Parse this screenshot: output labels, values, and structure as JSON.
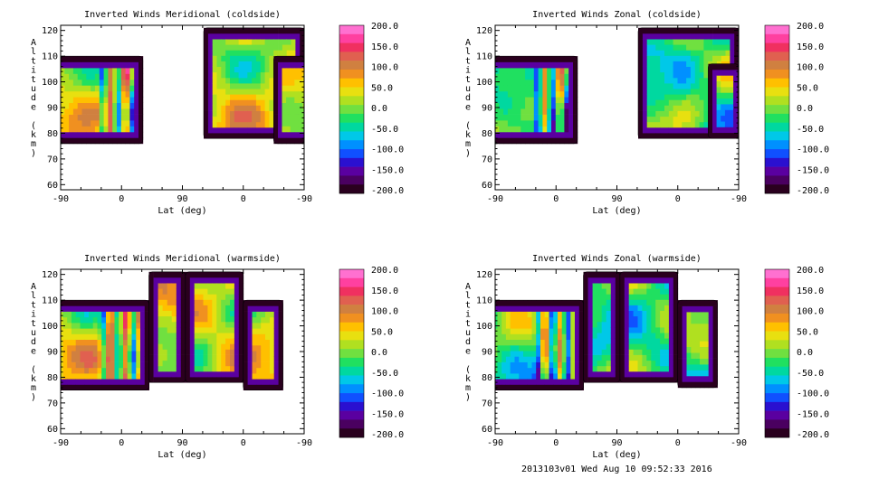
{
  "footer": "2013103v01 Wed Aug 10 09:52:33 2016",
  "colorbar": {
    "ticks": [
      "200.0",
      "150.0",
      "100.0",
      "50.0",
      "0.0",
      "-50.0",
      "-100.0",
      "-150.0",
      "-200.0"
    ],
    "values": [
      200,
      150,
      100,
      50,
      0,
      -50,
      -100,
      -150,
      -200
    ],
    "colors": [
      "#2a001e",
      "#4a0060",
      "#5a00a0",
      "#2a10d0",
      "#1050ff",
      "#0090ff",
      "#00c8e8",
      "#00d8a0",
      "#20e060",
      "#70e040",
      "#b0e020",
      "#e8e010",
      "#ffc000",
      "#f09020",
      "#d08040",
      "#e06050",
      "#f03060",
      "#ff40a0",
      "#ff70d0"
    ]
  },
  "chart_data": [
    {
      "type": "heatmap",
      "title": "Inverted Winds Meridional (coldside)",
      "xlabel": "Lat (deg)",
      "ylabel": "Altitude (km)",
      "xticks": [
        "-90",
        "0",
        "90",
        "0",
        "-90"
      ],
      "yticks": [
        "60",
        "70",
        "80",
        "90",
        "100",
        "110",
        "120"
      ],
      "ylim": [
        58,
        122
      ],
      "value_range": [
        -200,
        200
      ],
      "notes": "contour fill of meridional wind; empty gap near 90 deg"
    },
    {
      "type": "heatmap",
      "title": "Inverted Winds Zonal (coldside)",
      "xlabel": "Lat (deg)",
      "ylabel": "Altitude (km)",
      "xticks": [
        "-90",
        "0",
        "90",
        "0",
        "-90"
      ],
      "yticks": [
        "60",
        "70",
        "80",
        "90",
        "100",
        "110",
        "120"
      ],
      "ylim": [
        58,
        122
      ],
      "value_range": [
        -200,
        200
      ],
      "notes": "contour fill of zonal wind; empty gap near 90 deg"
    },
    {
      "type": "heatmap",
      "title": "Inverted Winds Meridional (warmside)",
      "xlabel": "Lat (deg)",
      "ylabel": "Altitude (km)",
      "xticks": [
        "-90",
        "0",
        "90",
        "0",
        "-90"
      ],
      "yticks": [
        "60",
        "70",
        "80",
        "90",
        "100",
        "110",
        "120"
      ],
      "ylim": [
        58,
        122
      ],
      "value_range": [
        -200,
        200
      ],
      "notes": "contour fill of meridional wind"
    },
    {
      "type": "heatmap",
      "title": "Inverted Winds Zonal (warmside)",
      "xlabel": "Lat (deg)",
      "ylabel": "Altitude (km)",
      "xticks": [
        "-90",
        "0",
        "90",
        "0",
        "-90"
      ],
      "yticks": [
        "60",
        "70",
        "80",
        "90",
        "100",
        "110",
        "120"
      ],
      "ylim": [
        58,
        122
      ],
      "value_range": [
        -200,
        200
      ],
      "notes": "contour fill of zonal wind"
    }
  ]
}
